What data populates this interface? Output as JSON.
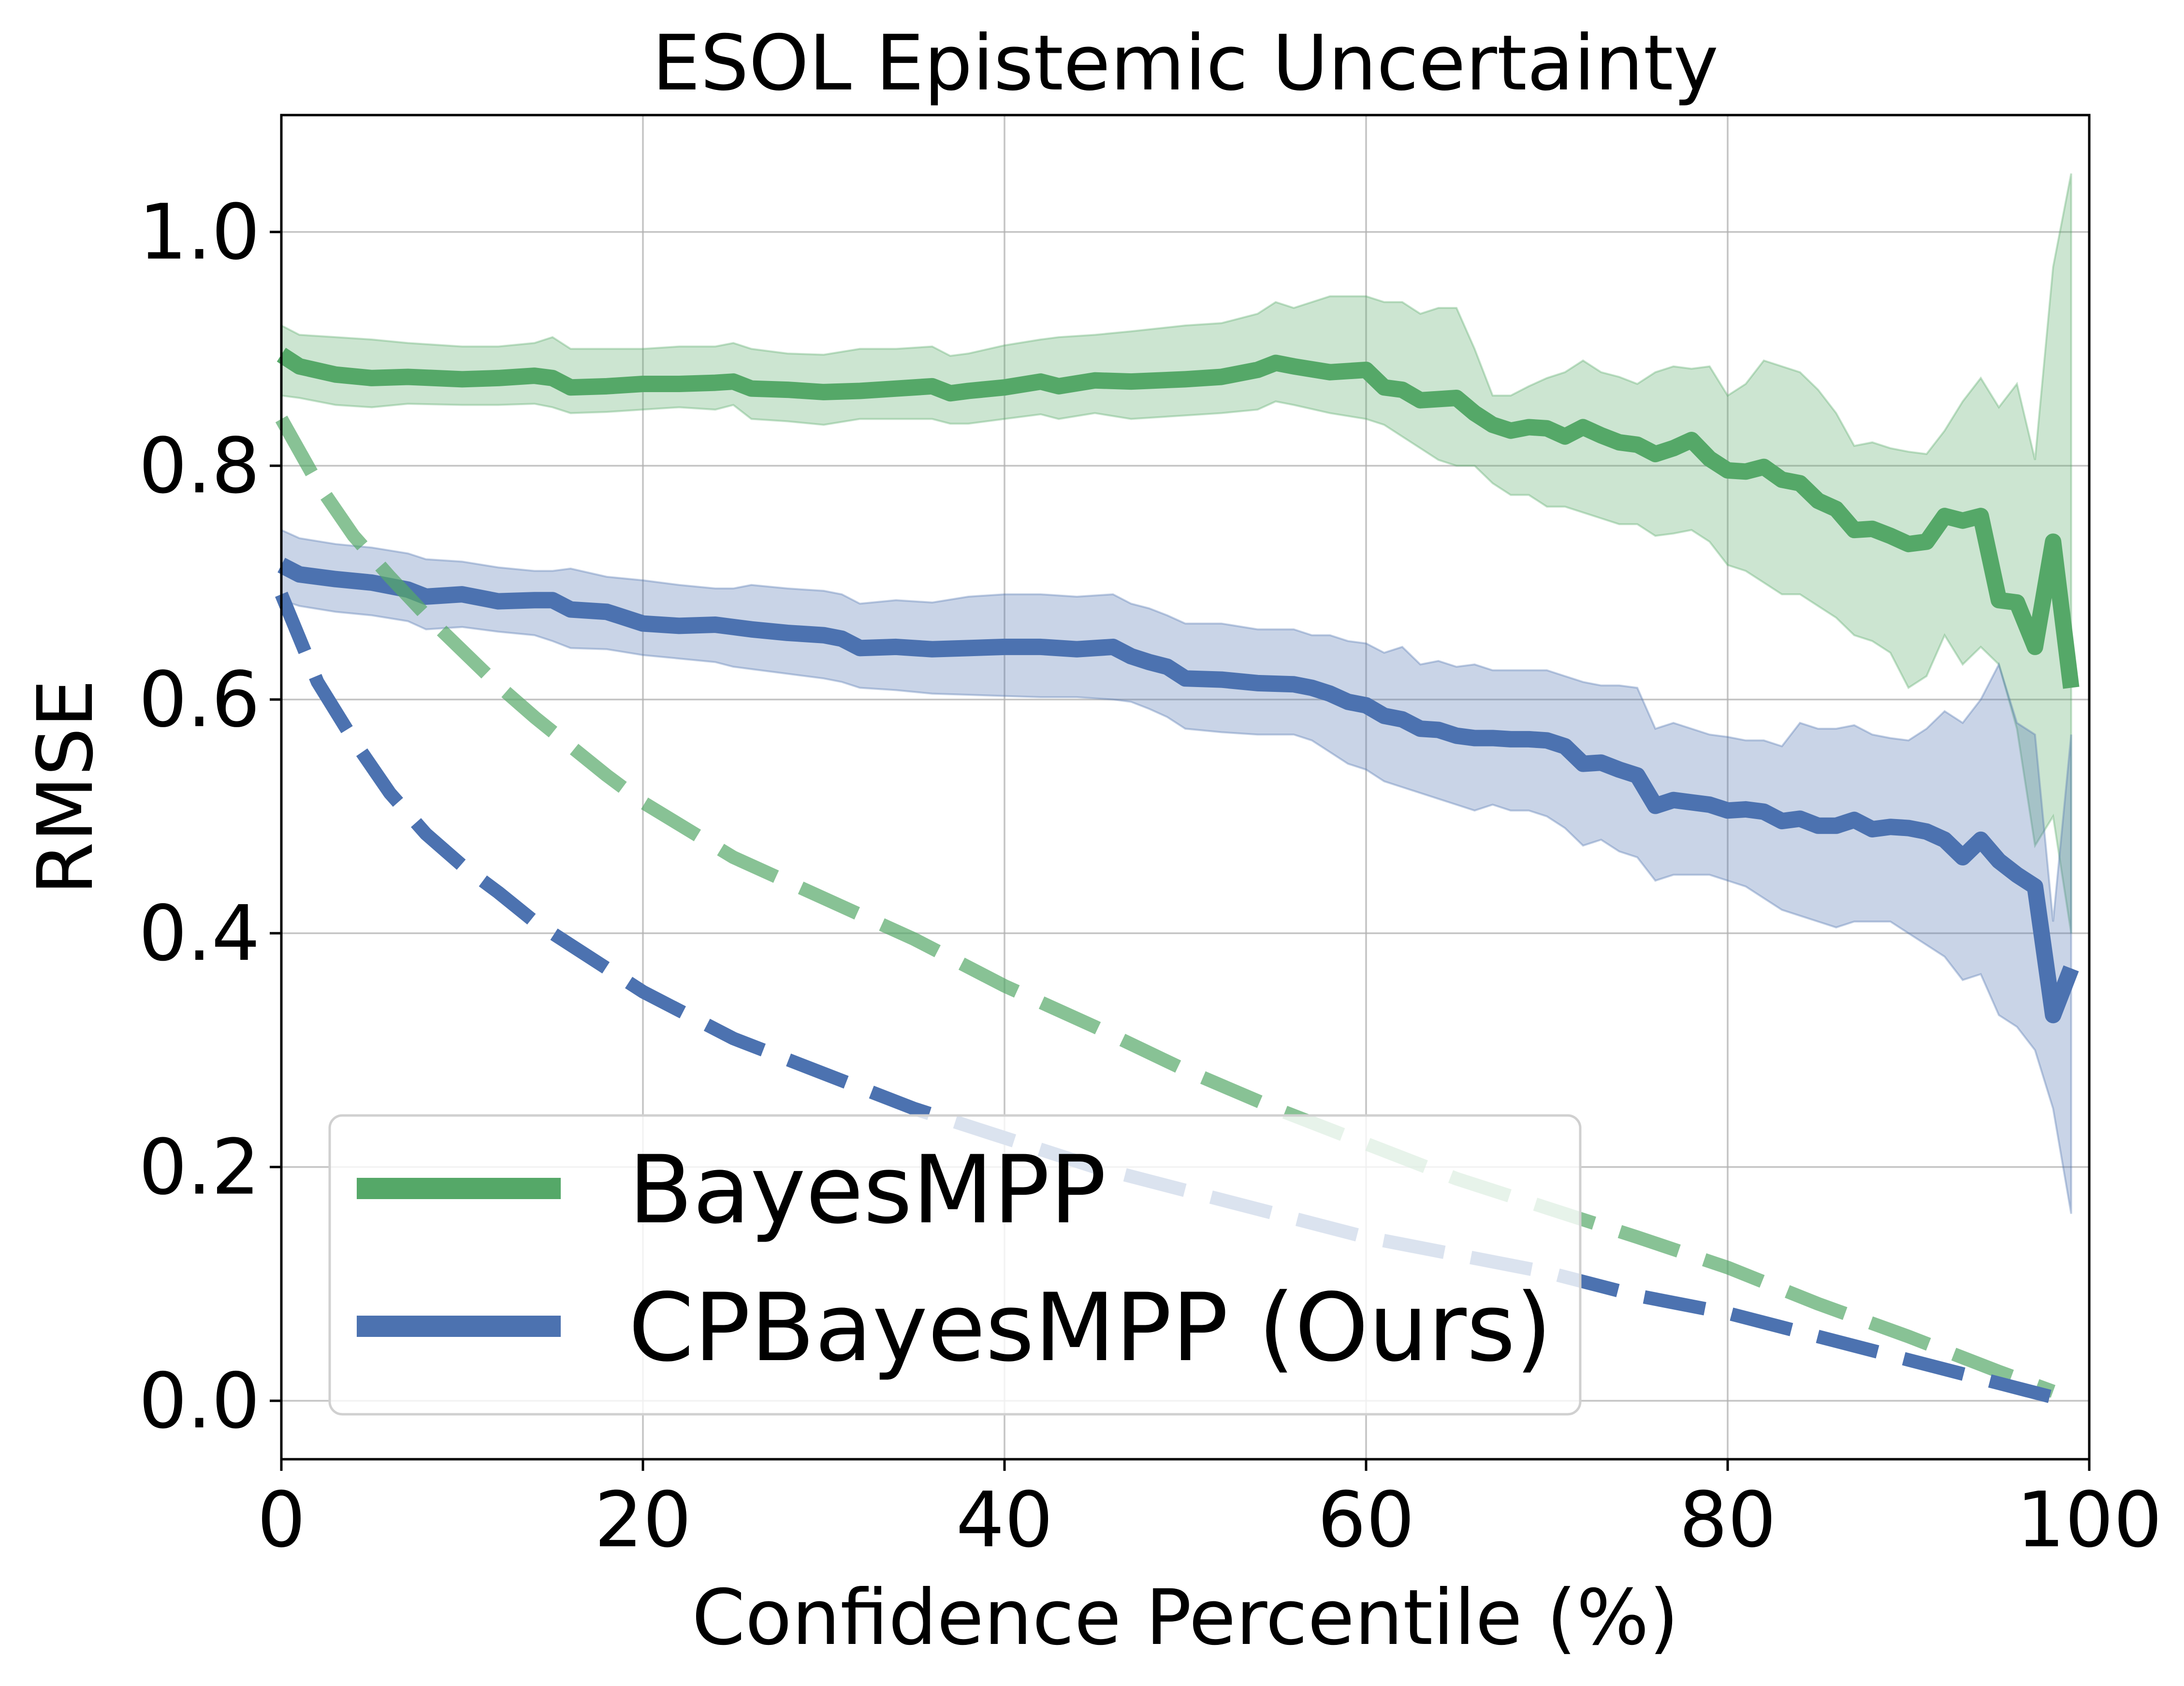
{
  "chart_data": {
    "type": "line",
    "title": "ESOL Epistemic Uncertainty",
    "xlabel": "Confidence Percentile (%)",
    "ylabel": "RMSE",
    "xlim": [
      0,
      100
    ],
    "ylim": [
      -0.05,
      1.1
    ],
    "xticks": [
      "0",
      "20",
      "40",
      "60",
      "80",
      "100"
    ],
    "yticks": [
      "0.0",
      "0.2",
      "0.4",
      "0.6",
      "0.8",
      "1.0"
    ],
    "grid": true,
    "legend_position": "lower-left",
    "series": [
      {
        "name": "BayesMPP",
        "color": "#55a868",
        "style": "solid",
        "x": [
          0,
          1,
          3,
          5,
          7,
          10,
          12,
          14,
          15,
          16,
          18,
          20,
          22,
          24,
          25,
          26,
          28,
          30,
          32,
          34,
          36,
          37,
          38,
          40,
          42,
          43,
          45,
          47,
          50,
          52,
          54,
          55,
          56,
          58,
          60,
          61,
          62,
          63,
          64,
          65,
          66,
          67,
          68,
          69,
          70,
          71,
          72,
          73,
          74,
          75,
          76,
          77,
          78,
          79,
          80,
          81,
          82,
          83,
          84,
          85,
          86,
          87,
          88,
          89,
          90,
          91,
          92,
          93,
          94,
          95,
          96,
          97,
          98,
          99
        ],
        "y": [
          0.895,
          0.885,
          0.878,
          0.875,
          0.876,
          0.874,
          0.875,
          0.877,
          0.875,
          0.867,
          0.868,
          0.87,
          0.87,
          0.871,
          0.872,
          0.866,
          0.865,
          0.863,
          0.864,
          0.866,
          0.868,
          0.862,
          0.864,
          0.867,
          0.872,
          0.868,
          0.873,
          0.872,
          0.874,
          0.876,
          0.882,
          0.888,
          0.885,
          0.88,
          0.882,
          0.867,
          0.865,
          0.856,
          0.857,
          0.858,
          0.845,
          0.835,
          0.83,
          0.833,
          0.832,
          0.825,
          0.833,
          0.826,
          0.82,
          0.818,
          0.81,
          0.815,
          0.822,
          0.806,
          0.796,
          0.795,
          0.799,
          0.788,
          0.785,
          0.77,
          0.763,
          0.745,
          0.746,
          0.74,
          0.733,
          0.735,
          0.757,
          0.753,
          0.757,
          0.685,
          0.683,
          0.645,
          0.735,
          0.61
        ],
        "lower": [
          0.86,
          0.858,
          0.852,
          0.85,
          0.853,
          0.852,
          0.852,
          0.853,
          0.85,
          0.845,
          0.846,
          0.848,
          0.85,
          0.848,
          0.852,
          0.84,
          0.838,
          0.835,
          0.84,
          0.84,
          0.84,
          0.836,
          0.836,
          0.84,
          0.844,
          0.84,
          0.845,
          0.84,
          0.843,
          0.845,
          0.848,
          0.855,
          0.852,
          0.845,
          0.84,
          0.835,
          0.825,
          0.815,
          0.805,
          0.8,
          0.8,
          0.785,
          0.775,
          0.775,
          0.765,
          0.765,
          0.76,
          0.755,
          0.75,
          0.75,
          0.74,
          0.742,
          0.745,
          0.735,
          0.715,
          0.71,
          0.7,
          0.69,
          0.69,
          0.68,
          0.67,
          0.655,
          0.65,
          0.64,
          0.61,
          0.62,
          0.655,
          0.63,
          0.645,
          0.63,
          0.575,
          0.475,
          0.5,
          0.4
        ],
        "upper": [
          0.92,
          0.912,
          0.91,
          0.908,
          0.905,
          0.902,
          0.902,
          0.905,
          0.91,
          0.9,
          0.9,
          0.9,
          0.902,
          0.902,
          0.905,
          0.9,
          0.896,
          0.895,
          0.9,
          0.9,
          0.902,
          0.894,
          0.896,
          0.903,
          0.908,
          0.91,
          0.912,
          0.915,
          0.92,
          0.922,
          0.93,
          0.94,
          0.935,
          0.945,
          0.945,
          0.94,
          0.94,
          0.93,
          0.935,
          0.935,
          0.9,
          0.86,
          0.86,
          0.868,
          0.875,
          0.88,
          0.89,
          0.88,
          0.876,
          0.87,
          0.88,
          0.885,
          0.883,
          0.885,
          0.86,
          0.87,
          0.89,
          0.885,
          0.88,
          0.865,
          0.845,
          0.817,
          0.82,
          0.815,
          0.812,
          0.81,
          0.83,
          0.855,
          0.875,
          0.85,
          0.87,
          0.805,
          0.97,
          1.05
        ]
      },
      {
        "name": "CPBayesMPP (Ours)",
        "color": "#4c72b0",
        "style": "solid",
        "x": [
          0,
          1,
          3,
          5,
          7,
          8,
          10,
          12,
          14,
          15,
          16,
          18,
          20,
          22,
          24,
          25,
          26,
          28,
          30,
          31,
          32,
          34,
          36,
          38,
          40,
          42,
          44,
          46,
          47,
          48,
          49,
          50,
          52,
          54,
          56,
          57,
          58,
          59,
          60,
          61,
          62,
          63,
          64,
          65,
          66,
          67,
          68,
          69,
          70,
          71,
          72,
          73,
          74,
          75,
          76,
          77,
          78,
          79,
          80,
          81,
          82,
          83,
          84,
          85,
          86,
          87,
          88,
          89,
          90,
          91,
          92,
          93,
          94,
          95,
          96,
          97,
          98,
          99
        ],
        "y": [
          0.715,
          0.707,
          0.703,
          0.7,
          0.694,
          0.688,
          0.69,
          0.684,
          0.685,
          0.685,
          0.677,
          0.675,
          0.665,
          0.663,
          0.664,
          0.662,
          0.66,
          0.657,
          0.655,
          0.652,
          0.644,
          0.645,
          0.643,
          0.644,
          0.645,
          0.645,
          0.643,
          0.645,
          0.637,
          0.632,
          0.628,
          0.618,
          0.617,
          0.614,
          0.613,
          0.61,
          0.605,
          0.598,
          0.595,
          0.586,
          0.583,
          0.575,
          0.574,
          0.569,
          0.567,
          0.567,
          0.566,
          0.566,
          0.565,
          0.56,
          0.545,
          0.546,
          0.54,
          0.535,
          0.509,
          0.514,
          0.512,
          0.51,
          0.505,
          0.506,
          0.504,
          0.496,
          0.498,
          0.492,
          0.492,
          0.497,
          0.489,
          0.491,
          0.49,
          0.487,
          0.48,
          0.465,
          0.48,
          0.462,
          0.45,
          0.44,
          0.33,
          0.37
        ],
        "lower": [
          0.685,
          0.68,
          0.675,
          0.672,
          0.667,
          0.66,
          0.662,
          0.658,
          0.655,
          0.65,
          0.644,
          0.643,
          0.638,
          0.635,
          0.632,
          0.628,
          0.626,
          0.622,
          0.618,
          0.615,
          0.61,
          0.608,
          0.605,
          0.604,
          0.603,
          0.602,
          0.602,
          0.6,
          0.598,
          0.592,
          0.585,
          0.575,
          0.572,
          0.57,
          0.57,
          0.565,
          0.555,
          0.545,
          0.54,
          0.53,
          0.525,
          0.52,
          0.515,
          0.51,
          0.505,
          0.51,
          0.505,
          0.505,
          0.5,
          0.49,
          0.475,
          0.48,
          0.47,
          0.465,
          0.445,
          0.45,
          0.45,
          0.45,
          0.445,
          0.44,
          0.43,
          0.42,
          0.415,
          0.41,
          0.405,
          0.41,
          0.41,
          0.41,
          0.4,
          0.39,
          0.38,
          0.36,
          0.365,
          0.33,
          0.32,
          0.3,
          0.25,
          0.16
        ],
        "upper": [
          0.745,
          0.738,
          0.733,
          0.73,
          0.725,
          0.72,
          0.718,
          0.713,
          0.71,
          0.71,
          0.712,
          0.705,
          0.702,
          0.698,
          0.695,
          0.695,
          0.698,
          0.695,
          0.693,
          0.69,
          0.682,
          0.685,
          0.683,
          0.688,
          0.69,
          0.69,
          0.688,
          0.69,
          0.682,
          0.678,
          0.672,
          0.665,
          0.665,
          0.66,
          0.66,
          0.655,
          0.655,
          0.65,
          0.648,
          0.64,
          0.645,
          0.63,
          0.633,
          0.628,
          0.63,
          0.625,
          0.625,
          0.625,
          0.625,
          0.62,
          0.615,
          0.612,
          0.612,
          0.61,
          0.575,
          0.58,
          0.575,
          0.57,
          0.568,
          0.565,
          0.565,
          0.56,
          0.58,
          0.575,
          0.575,
          0.578,
          0.57,
          0.567,
          0.565,
          0.575,
          0.59,
          0.58,
          0.6,
          0.63,
          0.58,
          0.57,
          0.41,
          0.57
        ]
      },
      {
        "color": "#55a868",
        "style": "dashed",
        "x": [
          0,
          2,
          4,
          6,
          8,
          10,
          12,
          14,
          16,
          18,
          20,
          25,
          30,
          35,
          40,
          45,
          50,
          55,
          60,
          65,
          70,
          75,
          80,
          85,
          90,
          95,
          98
        ],
        "y": [
          0.84,
          0.785,
          0.74,
          0.705,
          0.672,
          0.642,
          0.612,
          0.585,
          0.56,
          0.535,
          0.512,
          0.465,
          0.43,
          0.395,
          0.355,
          0.32,
          0.283,
          0.25,
          0.22,
          0.19,
          0.165,
          0.14,
          0.114,
          0.083,
          0.055,
          0.025,
          0.008
        ]
      },
      {
        "color": "#4c72b0",
        "style": "dashed",
        "x": [
          0,
          2,
          4,
          6,
          8,
          10,
          12,
          14,
          16,
          18,
          20,
          25,
          30,
          35,
          40,
          45,
          50,
          55,
          60,
          65,
          70,
          75,
          80,
          85,
          90,
          95,
          98
        ],
        "y": [
          0.69,
          0.615,
          0.565,
          0.52,
          0.485,
          0.458,
          0.435,
          0.41,
          0.39,
          0.37,
          0.35,
          0.31,
          0.28,
          0.25,
          0.225,
          0.2,
          0.18,
          0.16,
          0.14,
          0.125,
          0.11,
          0.09,
          0.075,
          0.055,
          0.035,
          0.015,
          0.003
        ]
      }
    ]
  }
}
